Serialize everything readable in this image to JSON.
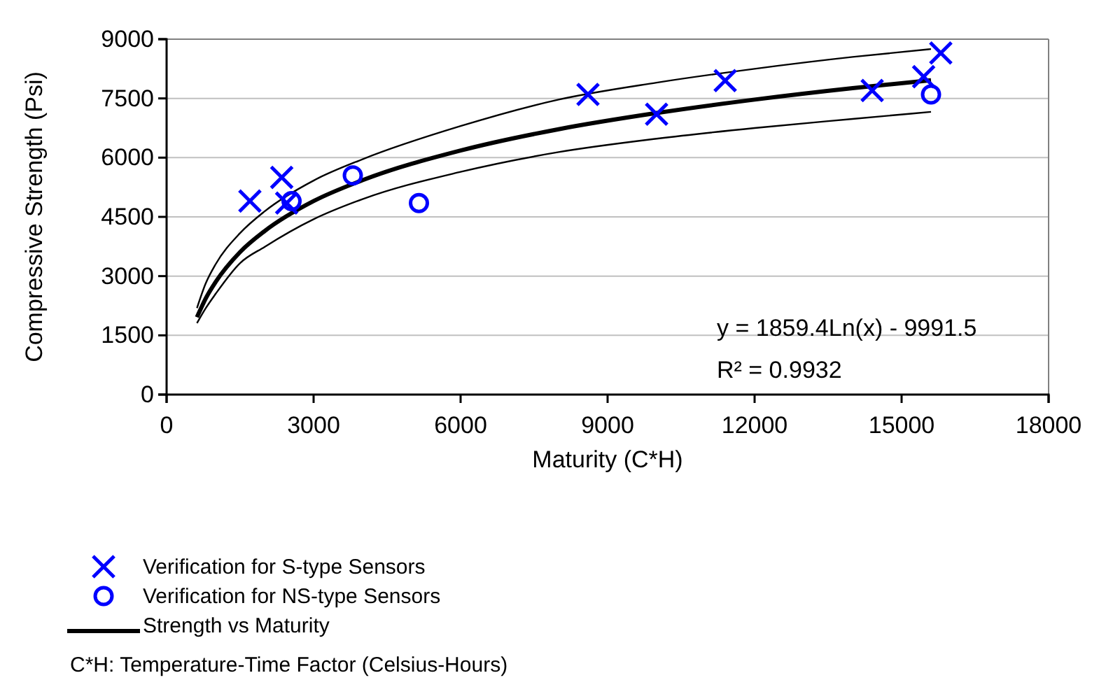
{
  "chart_data": {
    "type": "scatter",
    "xlabel": "Maturity (C*H)",
    "ylabel": "Compressive Strength (Psi)",
    "xlim": [
      0,
      18000
    ],
    "xticks": [
      0,
      3000,
      6000,
      9000,
      12000,
      15000,
      18000
    ],
    "ylim": [
      0,
      9000
    ],
    "yticks": [
      0,
      1500,
      3000,
      4500,
      6000,
      7500,
      9000
    ],
    "grid": "y",
    "legend": "bottom",
    "annotations": [
      "y = 1859.4Ln(x) - 9991.5",
      "R² = 0.9932",
      "C*H: Temperature-Time Factor (Celsius-Hours)"
    ],
    "series": [
      {
        "name": "Verification for S-type Sensors",
        "marker": "cross",
        "color": "#0000ff",
        "x": [
          1700,
          2350,
          2450,
          8600,
          10000,
          11400,
          14400,
          15450,
          15800
        ],
        "values": [
          4900,
          5500,
          4850,
          7600,
          7100,
          7950,
          7700,
          8050,
          8650
        ]
      },
      {
        "name": "Verification for NS-type Sensors",
        "marker": "circle",
        "color": "#0000ff",
        "x": [
          2550,
          3800,
          5150,
          15600
        ],
        "values": [
          4900,
          5550,
          4850,
          7600
        ]
      },
      {
        "name": "Strength vs Maturity",
        "type": "line",
        "marker": "none",
        "color": "#000000",
        "x": [
          620,
          800,
          1000,
          1500,
          2000,
          3000,
          4000,
          6000,
          8000,
          10000,
          12000,
          14000,
          15600
        ],
        "values": [
          1960,
          2440,
          2850,
          3610,
          4140,
          4900,
          5430,
          6180,
          6720,
          7130,
          7470,
          7760,
          7960
        ]
      },
      {
        "type": "line",
        "marker": "none",
        "color": "#000000",
        "x": [
          620,
          800,
          1000,
          1500,
          2000,
          3000,
          4000,
          6000,
          8000,
          10000,
          12000,
          14000,
          15600
        ],
        "values": [
          2190,
          2820,
          3300,
          4090,
          4640,
          5420,
          5960,
          6800,
          7470,
          7900,
          8250,
          8550,
          8750
        ]
      },
      {
        "type": "line",
        "marker": "none",
        "color": "#000000",
        "x": [
          620,
          800,
          1000,
          1500,
          2000,
          3000,
          4000,
          6000,
          8000,
          10000,
          12000,
          14000,
          15600
        ],
        "values": [
          1810,
          2190,
          2550,
          3330,
          3740,
          4440,
          4950,
          5640,
          6140,
          6480,
          6750,
          6980,
          7160
        ]
      }
    ]
  }
}
